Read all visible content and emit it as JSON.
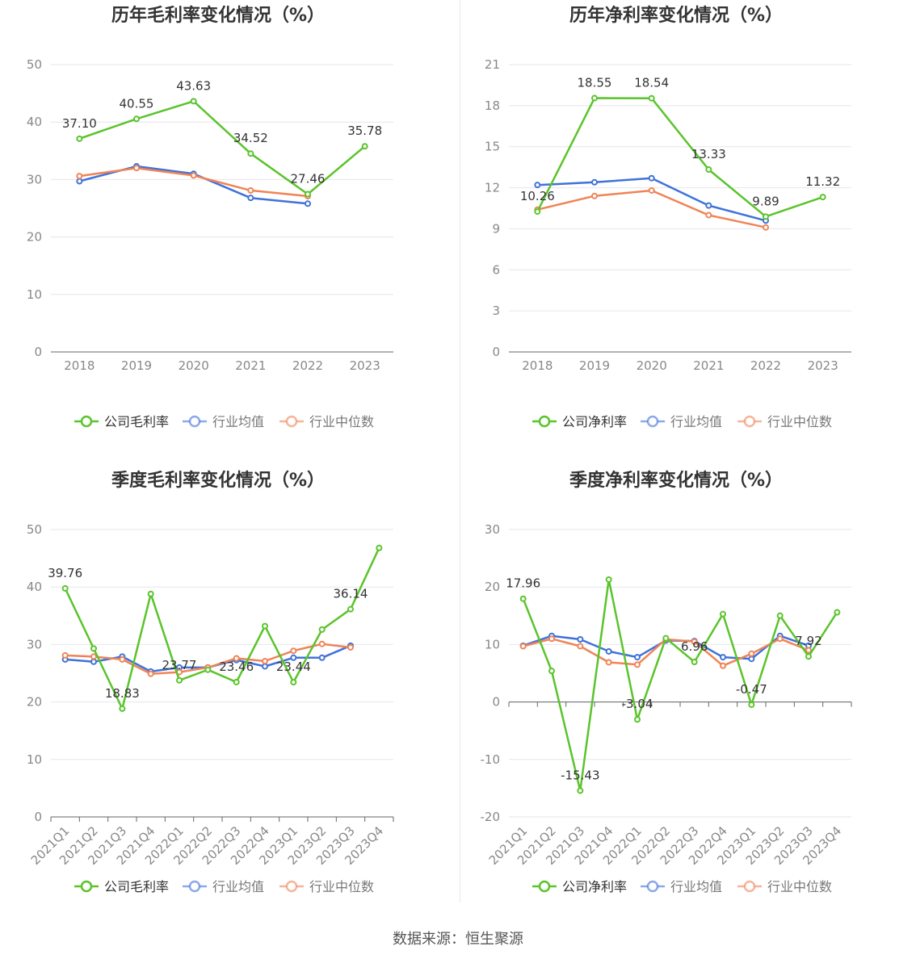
{
  "footer": {
    "source": "数据来源：恒生聚源"
  },
  "colors": {
    "company": "#5ac42b",
    "avg": "#3f72d9",
    "median": "#ef8456",
    "grid": "#e6e6ee",
    "axis": "#666666"
  },
  "chart_data": [
    {
      "type": "line",
      "title": "历年毛利率变化情况（%）",
      "x": [
        "2018",
        "2019",
        "2020",
        "2021",
        "2022",
        "2023"
      ],
      "ylim": [
        0,
        50
      ],
      "yticks": [
        0,
        10,
        20,
        30,
        40,
        50
      ],
      "series": [
        {
          "name": "公司毛利率",
          "values": [
            37.1,
            40.55,
            43.63,
            34.52,
            27.46,
            35.78
          ],
          "labels": [
            "37.10",
            "40.55",
            "43.63",
            "34.52",
            "27.46",
            "35.78"
          ]
        },
        {
          "name": "行业均值",
          "values": [
            29.7,
            32.3,
            31.0,
            26.8,
            25.8,
            null
          ]
        },
        {
          "name": "行业中位数",
          "values": [
            30.6,
            32.0,
            30.7,
            28.1,
            27.1,
            null
          ]
        }
      ]
    },
    {
      "type": "line",
      "title": "历年净利率变化情况（%）",
      "x": [
        "2018",
        "2019",
        "2020",
        "2021",
        "2022",
        "2023"
      ],
      "ylim": [
        0,
        21
      ],
      "yticks": [
        0,
        3,
        6,
        9,
        12,
        15,
        18,
        21
      ],
      "series": [
        {
          "name": "公司净利率",
          "values": [
            10.26,
            18.55,
            18.54,
            13.33,
            9.89,
            11.32
          ],
          "labels": [
            "10.26",
            "18.55",
            "18.54",
            "13.33",
            "9.89",
            "11.32"
          ]
        },
        {
          "name": "行业均值",
          "values": [
            12.2,
            12.4,
            12.7,
            10.7,
            9.6,
            null
          ]
        },
        {
          "name": "行业中位数",
          "values": [
            10.4,
            11.4,
            11.8,
            10.0,
            9.1,
            null
          ]
        }
      ]
    },
    {
      "type": "line",
      "title": "季度毛利率变化情况（%）",
      "x": [
        "2021Q1",
        "2021Q2",
        "2021Q3",
        "2021Q4",
        "2022Q1",
        "2022Q2",
        "2022Q3",
        "2022Q4",
        "2023Q1",
        "2023Q2",
        "2023Q3",
        "2023Q4"
      ],
      "ylim": [
        0,
        50
      ],
      "yticks": [
        0,
        10,
        20,
        30,
        40,
        50
      ],
      "series": [
        {
          "name": "公司毛利率",
          "values": [
            39.76,
            29.3,
            18.83,
            38.8,
            23.77,
            25.6,
            23.46,
            33.2,
            23.44,
            32.6,
            36.14,
            46.8
          ],
          "labels": [
            "39.76",
            null,
            "18.83",
            null,
            "23.77",
            null,
            "23.46",
            null,
            "23.44",
            null,
            "36.14",
            null
          ]
        },
        {
          "name": "行业均值",
          "values": [
            27.4,
            27.0,
            27.9,
            25.3,
            26.0,
            26.0,
            27.3,
            26.2,
            27.7,
            27.7,
            29.8,
            null
          ]
        },
        {
          "name": "行业中位数",
          "values": [
            28.1,
            27.9,
            27.4,
            24.9,
            25.2,
            26.0,
            27.6,
            27.1,
            28.9,
            30.1,
            29.5,
            null
          ]
        }
      ]
    },
    {
      "type": "line",
      "title": "季度净利率变化情况（%）",
      "x": [
        "2021Q1",
        "2021Q2",
        "2021Q3",
        "2021Q4",
        "2022Q1",
        "2022Q2",
        "2022Q3",
        "2022Q4",
        "2023Q1",
        "2023Q2",
        "2023Q3",
        "2023Q4"
      ],
      "ylim": [
        -20,
        30
      ],
      "yticks": [
        -20,
        -10,
        0,
        10,
        20,
        30
      ],
      "series": [
        {
          "name": "公司净利率",
          "values": [
            17.96,
            5.4,
            -15.43,
            21.3,
            -3.04,
            11.1,
            6.96,
            15.3,
            -0.47,
            15.0,
            7.92,
            15.6
          ],
          "labels": [
            "17.96",
            null,
            "-15.43",
            null,
            "-3.04",
            null,
            "6.96",
            null,
            "-0.47",
            null,
            "7.92",
            null
          ]
        },
        {
          "name": "行业均值",
          "values": [
            9.8,
            11.5,
            10.9,
            8.8,
            7.8,
            10.7,
            10.6,
            7.8,
            7.5,
            11.5,
            9.8,
            null
          ]
        },
        {
          "name": "行业中位数",
          "values": [
            9.7,
            11.0,
            9.7,
            6.9,
            6.5,
            10.9,
            10.5,
            6.3,
            8.4,
            11.0,
            9.0,
            null
          ]
        }
      ]
    }
  ]
}
